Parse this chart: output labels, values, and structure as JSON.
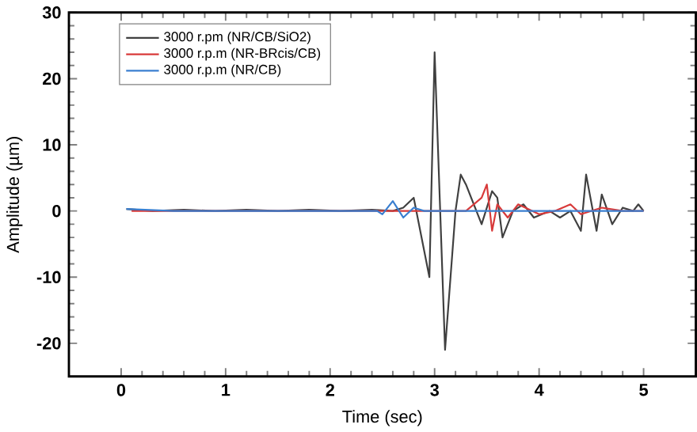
{
  "chart_data": {
    "type": "line",
    "xlabel": "Time (sec)",
    "ylabel": "Amplitude (µm)",
    "xlim": [
      -0.5,
      5.5
    ],
    "ylim": [
      -25,
      30
    ],
    "xticks": [
      0,
      1,
      2,
      3,
      4,
      5
    ],
    "yticks": [
      -20,
      -10,
      0,
      10,
      20,
      30
    ],
    "grid": false,
    "legend": "top left",
    "marker": "none",
    "line_style": "solid",
    "series": [
      {
        "name": "3000 r.pm (NR/CB/SiO2)",
        "color": "#404040",
        "x": [
          0.05,
          0.3,
          0.6,
          0.9,
          1.2,
          1.5,
          1.8,
          2.1,
          2.4,
          2.6,
          2.7,
          2.8,
          2.85,
          2.95,
          3.0,
          3.1,
          3.2,
          3.25,
          3.3,
          3.4,
          3.45,
          3.55,
          3.6,
          3.65,
          3.75,
          3.85,
          3.95,
          4.1,
          4.2,
          4.3,
          4.4,
          4.45,
          4.55,
          4.6,
          4.7,
          4.8,
          4.9,
          4.95,
          5.0
        ],
        "values": [
          0.3,
          0,
          0.2,
          0,
          0.2,
          0,
          0.2,
          0,
          0.2,
          0,
          0.5,
          2,
          -2,
          -10,
          24,
          -21,
          0,
          5.5,
          4,
          0,
          -2,
          3,
          2,
          -4,
          0,
          1,
          -1,
          0,
          -1,
          0,
          -3,
          5.5,
          -3,
          2.5,
          -2,
          0.5,
          0,
          1,
          0
        ]
      },
      {
        "name": "3000 r.p.m (NR-BRcis/CB)",
        "color": "#d83a3a",
        "x": [
          0.1,
          0.5,
          1.0,
          1.5,
          2.0,
          2.5,
          3.0,
          3.3,
          3.45,
          3.5,
          3.55,
          3.6,
          3.7,
          3.8,
          4.0,
          4.15,
          4.3,
          4.4,
          4.6,
          4.8,
          5.0
        ],
        "values": [
          0,
          0,
          0,
          0,
          0,
          0,
          0,
          0,
          2,
          4,
          -3,
          1,
          -1,
          1,
          -0.5,
          0,
          1,
          -0.5,
          0.5,
          0,
          0
        ]
      },
      {
        "name": "3000 r.p.m (NR/CB)",
        "color": "#3a7fd0",
        "x": [
          0.05,
          0.5,
          1.0,
          1.5,
          2.0,
          2.45,
          2.5,
          2.6,
          2.7,
          2.8,
          2.9,
          3.2,
          3.6,
          4.0,
          4.5,
          5.0
        ],
        "values": [
          0.3,
          0,
          0,
          0,
          0,
          0,
          -0.5,
          1.5,
          -1,
          0.5,
          0,
          0,
          0,
          0,
          0,
          0
        ]
      }
    ]
  }
}
